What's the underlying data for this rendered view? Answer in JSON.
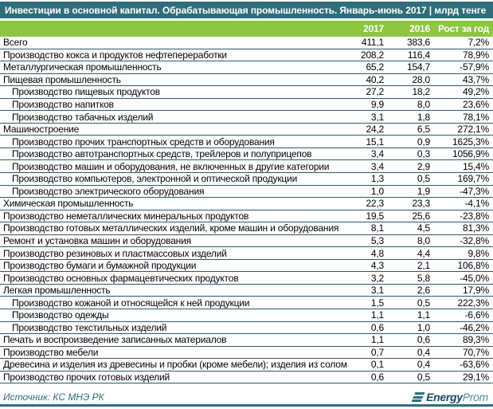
{
  "title": "Инвестиции в основной капитал. Обрабатывающая промышленность. Январь-июнь 2017 | млрд тенге",
  "colors": {
    "header_bg": "#2e6e7a",
    "accent_green": "#8dc63f",
    "row_border": "#2a5a70",
    "source_text": "#2e6e7a",
    "logo_dark": "#1c4a5e",
    "logo_light": "#4e8fa0"
  },
  "table": {
    "columns": [
      "2017",
      "2016",
      "Рост за год"
    ],
    "rows": [
      {
        "label": "Всего",
        "v2017": "411,1",
        "v2016": "383,6",
        "growth": "7,2%",
        "indent": 0
      },
      {
        "label": "Производство кокса и продуктов нефтепереработки",
        "v2017": "208,2",
        "v2016": "116,4",
        "growth": "78,9%",
        "indent": 0
      },
      {
        "label": "Металлургическая промышленность",
        "v2017": "65,2",
        "v2016": "154,7",
        "growth": "-57,9%",
        "indent": 0
      },
      {
        "label": "Пищевая промышленность",
        "v2017": "40,2",
        "v2016": "28,0",
        "growth": "43,7%",
        "indent": 0
      },
      {
        "label": "Производство пищевых  продуктов",
        "v2017": "27,2",
        "v2016": "18,2",
        "growth": "49,2%",
        "indent": 1
      },
      {
        "label": "Производство напитков",
        "v2017": "9,9",
        "v2016": "8,0",
        "growth": "23,6%",
        "indent": 1
      },
      {
        "label": "Производство табачных изделий",
        "v2017": "3,1",
        "v2016": "1,8",
        "growth": "78,1%",
        "indent": 1
      },
      {
        "label": "Машиностроение",
        "v2017": "24,2",
        "v2016": "6,5",
        "growth": "272,1%",
        "indent": 0
      },
      {
        "label": "Производство прочих транспортных средств и оборудования",
        "v2017": "15,1",
        "v2016": "0,9",
        "growth": "1625,3%",
        "indent": 1
      },
      {
        "label": "Производство автотранспортных средств, трейлеров и полуприцепов",
        "v2017": "3,4",
        "v2016": "0,3",
        "growth": "1056,9%",
        "indent": 1
      },
      {
        "label": "Производство машин и оборудования, не включенных в другие категории",
        "v2017": "3,4",
        "v2016": "2,9",
        "growth": "15,4%",
        "indent": 1
      },
      {
        "label": "Производство компьютеров, электронной и оптической продукции",
        "v2017": "1,3",
        "v2016": "0,5",
        "growth": "169,7%",
        "indent": 1
      },
      {
        "label": "Производство электрического оборудования",
        "v2017": "1,0",
        "v2016": "1,9",
        "growth": "-47,3%",
        "indent": 1
      },
      {
        "label": "Химическая промышленность",
        "v2017": "22,3",
        "v2016": "23,3",
        "growth": "-4,1%",
        "indent": 0
      },
      {
        "label": "Производство неметаллических минеральных продуктов",
        "v2017": "19,5",
        "v2016": "25,6",
        "growth": "-23,8%",
        "indent": 0
      },
      {
        "label": "Производство готовых металлических изделий, кроме машин и оборудования",
        "v2017": "8,1",
        "v2016": "4,5",
        "growth": "81,3%",
        "indent": 0
      },
      {
        "label": "Ремонт и установка машин и оборудования",
        "v2017": "5,3",
        "v2016": "8,0",
        "growth": "-32,8%",
        "indent": 0
      },
      {
        "label": "Производство резиновых и пластмассовых изделий",
        "v2017": "4,8",
        "v2016": "4,4",
        "growth": "9,8%",
        "indent": 0
      },
      {
        "label": "Производство бумаги и бумажной продукции",
        "v2017": "4,3",
        "v2016": "2,1",
        "growth": "106,8%",
        "indent": 0
      },
      {
        "label": "Производство основных фармацевтических продуктов",
        "v2017": "3,2",
        "v2016": "5,8",
        "growth": "-45,0%",
        "indent": 0
      },
      {
        "label": "Легкая промышленность",
        "v2017": "3,1",
        "v2016": "2,6",
        "growth": "17,9%",
        "indent": 0
      },
      {
        "label": "Производство кожаной и относящейся к ней продукции",
        "v2017": "1,5",
        "v2016": "0,5",
        "growth": "222,3%",
        "indent": 1
      },
      {
        "label": "Производство одежды",
        "v2017": "1,1",
        "v2016": "1,1",
        "growth": "-6,6%",
        "indent": 1
      },
      {
        "label": "Производство текстильных изделий",
        "v2017": "0,6",
        "v2016": "1,0",
        "growth": "-46,2%",
        "indent": 1
      },
      {
        "label": "Печать и воспроизведение записанных материалов",
        "v2017": "1,1",
        "v2016": "0,6",
        "growth": "89,3%",
        "indent": 0
      },
      {
        "label": "Производство мебели",
        "v2017": "0,7",
        "v2016": "0,4",
        "growth": "70,7%",
        "indent": 0
      },
      {
        "label": "Древесина и изделия из древесины и пробки (кроме мебели); изделия из солом",
        "v2017": "0,1",
        "v2016": "0,4",
        "growth": "-63,6%",
        "indent": 0
      },
      {
        "label": "Производство прочих готовых изделий",
        "v2017": "0,6",
        "v2016": "0,5",
        "growth": "29,1%",
        "indent": 0
      }
    ]
  },
  "footer": {
    "source": "Источник: КС МНЭ РК",
    "logo_bold": "Energy",
    "logo_light": "Prom"
  }
}
